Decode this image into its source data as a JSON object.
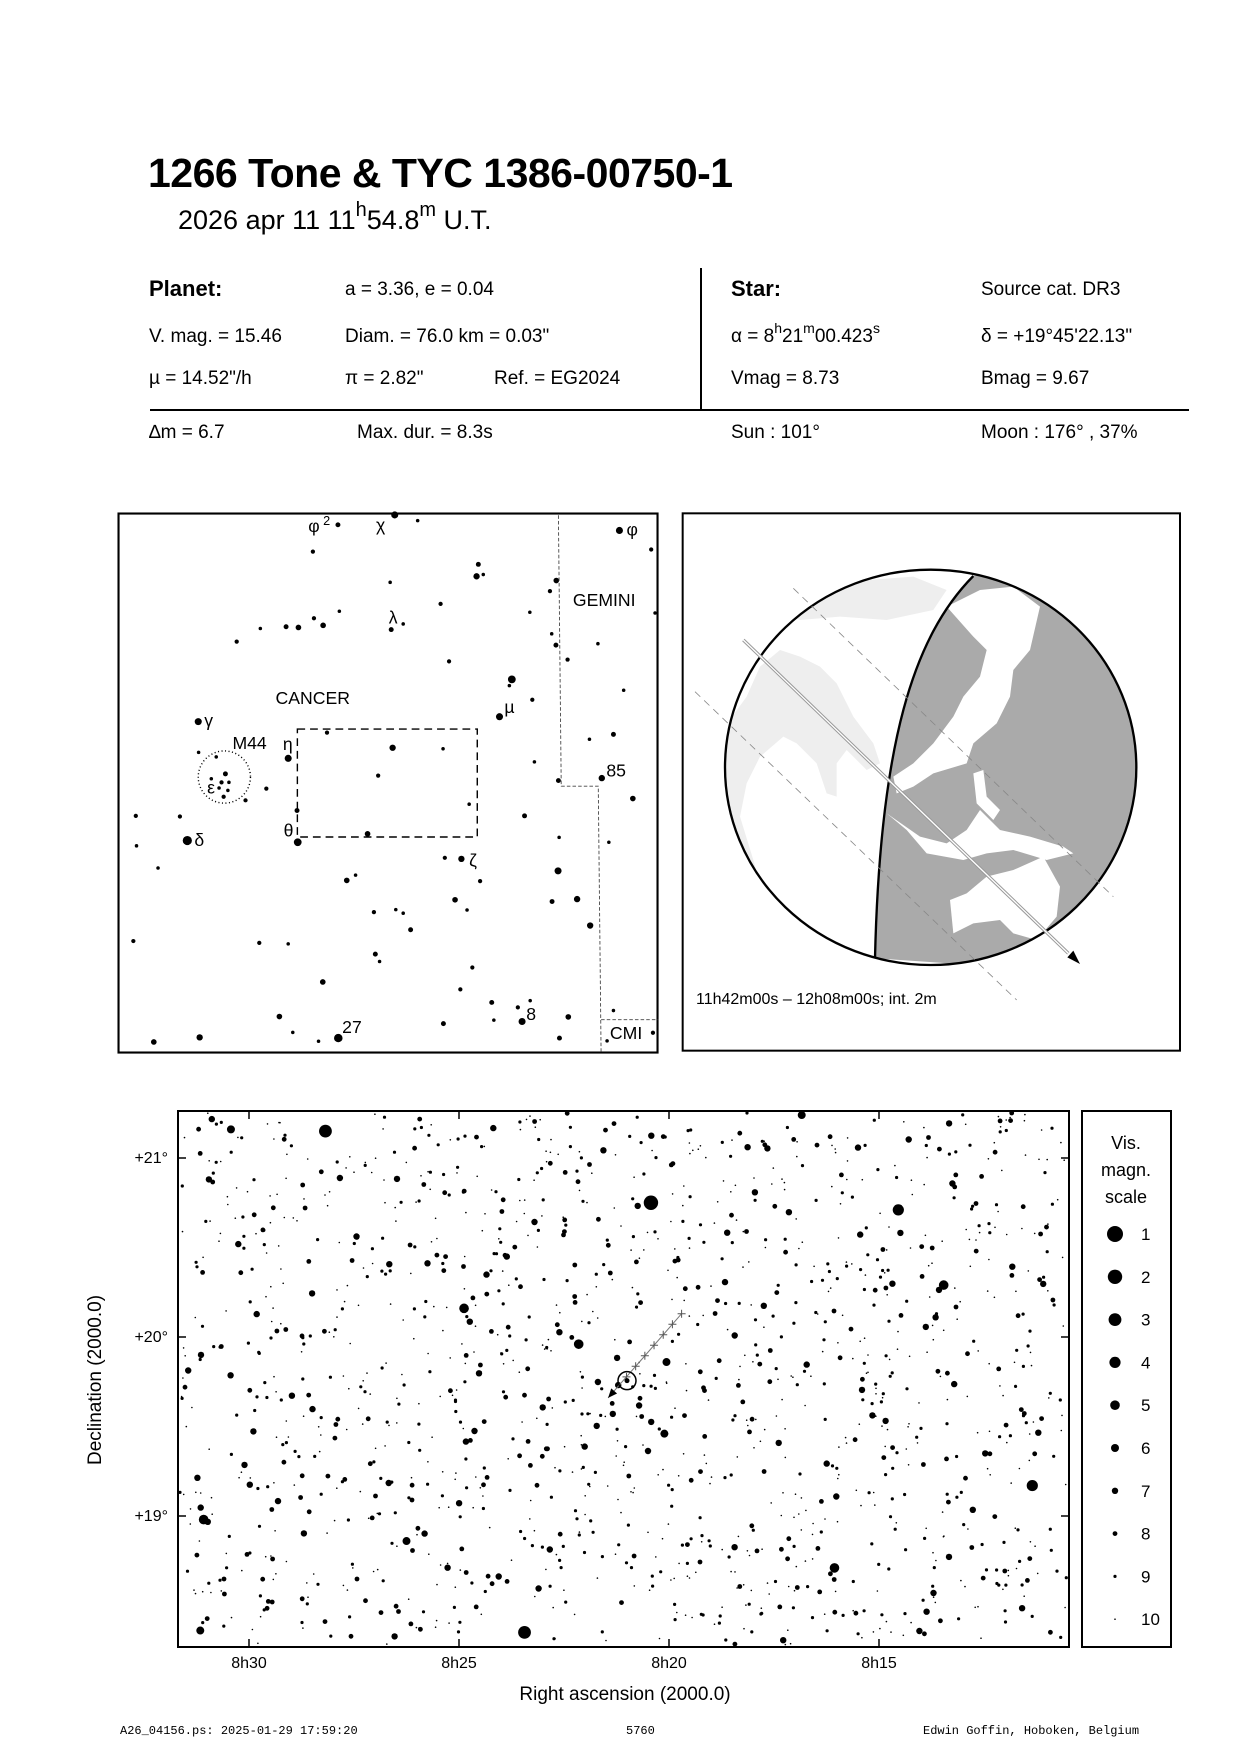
{
  "header": {
    "title": "1266 Tone  &  TYC 1386-00750-1",
    "subtitle": {
      "date": "2026 apr 11  11",
      "h": "h",
      "min": "54.8",
      "m": "m",
      "ut": " U.T."
    }
  },
  "planet": {
    "label": "Planet:",
    "orbit": "a = 3.36, e = 0.04",
    "vmag": "V. mag. = 15.46",
    "diam": "Diam. = 76.0 km = 0.03\"",
    "mu": "µ =  14.52\"/h",
    "parallax": "π =  2.82\"",
    "ref": "Ref. = EG2024"
  },
  "star": {
    "label": "Star:",
    "source": "Source cat.  DR3",
    "ra": {
      "prefix": "α =  8",
      "h": "h",
      "min": "21",
      "m": "m",
      "sec": "00.423",
      "s": "s"
    },
    "dec": "δ = +19°45'22.13\"",
    "vmag": "Vmag =  8.73",
    "bmag": "Bmag =  9.67"
  },
  "summary": {
    "dm": "∆m = 6.7",
    "maxdur": "Max. dur. = 8.3s",
    "sun": "Sun : 101°",
    "moon": "Moon : 176° , 37%"
  },
  "finder": {
    "labels": {
      "phi2": "φ",
      "phi2_sup": "2",
      "chi": "χ",
      "phi": "φ",
      "lambda": "λ",
      "gemini": "GEMINI",
      "cancer": "CANCER",
      "gamma": "γ",
      "m44": "M44",
      "eta": "η",
      "epsilon": "ε",
      "delta": "δ",
      "theta": "θ",
      "mu": "µ",
      "zeta": "ζ",
      "n85": "85",
      "n8": "8",
      "n27": "27",
      "cmi": "CMI"
    }
  },
  "globe": {
    "time_range": "11h42m00s – 12h08m00s; int.  2m",
    "colors": {
      "night": "#aaaaaa",
      "day_land": "#eeeeee",
      "night_land": "#ffffff"
    }
  },
  "legend": {
    "title": [
      "Vis.",
      "magn.",
      "scale"
    ],
    "mags": [
      "1",
      "2",
      "3",
      "4",
      "5",
      "6",
      "7",
      "8",
      "9",
      "10"
    ]
  },
  "chart_data": {
    "type": "scatter",
    "xlabel": "Right ascension (2000.0)",
    "ylabel": "Declination (2000.0)",
    "x_ticks": [
      "8h30",
      "8h25",
      "8h20",
      "8h15"
    ],
    "x_tick_values_min": [
      30,
      25,
      20,
      15
    ],
    "y_ticks": [
      "+21°",
      "+20°",
      "+19°"
    ],
    "y_tick_values": [
      21,
      20,
      19
    ],
    "xlim_ra_min_of_8h": [
      31.7,
      10.5
    ],
    "ylim_dec": [
      18.27,
      21.26
    ],
    "x_reversed": true,
    "target_star": {
      "ra_min": 21.0,
      "dec": 19.756
    },
    "asteroid_path": {
      "start": {
        "ra_min": 19.7,
        "dec": 20.13
      },
      "end": {
        "ra_min": 21.45,
        "dec": 19.66
      }
    },
    "bright_stars": [
      {
        "ra_min": 28.18,
        "dec": 21.15,
        "mag": 3
      },
      {
        "ra_min": 20.43,
        "dec": 20.75,
        "mag": 2
      },
      {
        "ra_min": 23.44,
        "dec": 18.35,
        "mag": 3
      },
      {
        "ra_min": 11.35,
        "dec": 19.17,
        "mag": 4
      },
      {
        "ra_min": 14.54,
        "dec": 20.71,
        "mag": 4
      },
      {
        "ra_min": 24.88,
        "dec": 20.16,
        "mag": 5
      },
      {
        "ra_min": 22.15,
        "dec": 19.96,
        "mag": 5
      },
      {
        "ra_min": 31.08,
        "dec": 18.98,
        "mag": 5
      },
      {
        "ra_min": 16.06,
        "dec": 18.71,
        "mag": 5
      },
      {
        "ra_min": 13.46,
        "dec": 20.29,
        "mag": 5
      },
      {
        "ra_min": 20.06,
        "dec": 19.86,
        "mag": 6
      },
      {
        "ra_min": 16.84,
        "dec": 21.24,
        "mag": 6
      },
      {
        "ra_min": 30.43,
        "dec": 21.16,
        "mag": 6
      },
      {
        "ra_min": 20.11,
        "dec": 19.46,
        "mag": 6
      },
      {
        "ra_min": 26.25,
        "dec": 18.86,
        "mag": 6
      },
      {
        "ra_min": 31.16,
        "dec": 18.36,
        "mag": 6
      }
    ]
  },
  "footer": {
    "file": "A26_04156.ps: 2025-01-29 17:59:20",
    "number": "5760",
    "author": "Edwin Goffin, Hoboken, Belgium"
  }
}
